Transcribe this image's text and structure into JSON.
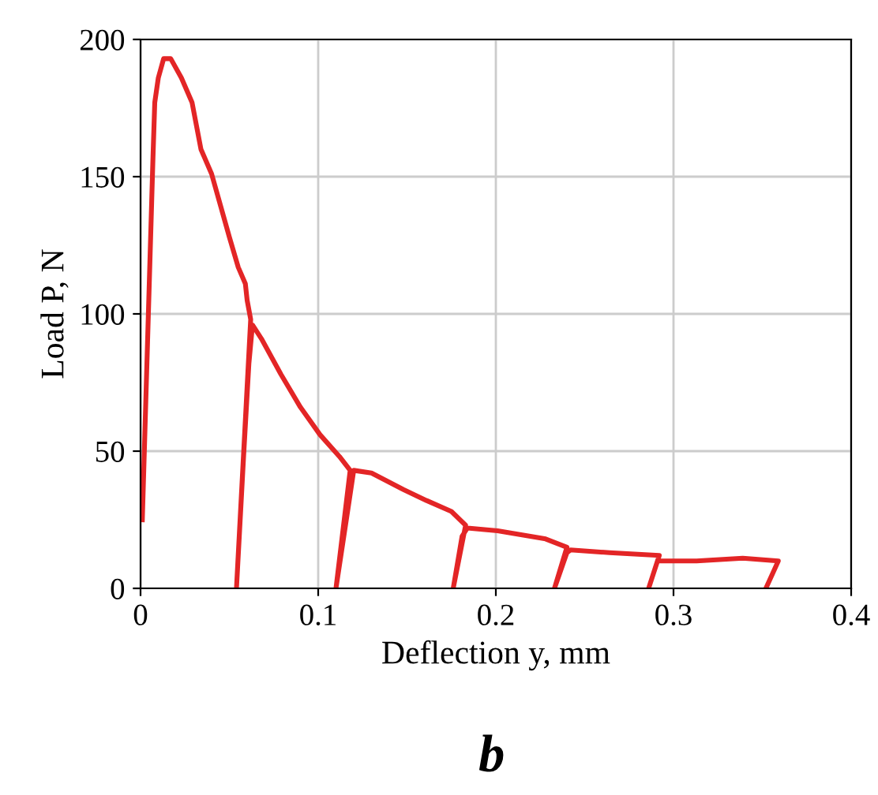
{
  "chart_data": {
    "type": "line",
    "xlabel": "Deflection y, mm",
    "ylabel": "Load P, N",
    "annotations": [
      "b"
    ],
    "xlim": [
      0,
      0.4
    ],
    "ylim": [
      0,
      200
    ],
    "xticks": [
      0,
      0.1,
      0.2,
      0.3,
      0.4
    ],
    "yticks": [
      0,
      50,
      100,
      150,
      200
    ],
    "grid": true,
    "legend": false,
    "marker": "none",
    "line_style": "solid",
    "series": [
      {
        "color": "#e32526",
        "x": [
          0.001,
          0.007,
          0.008,
          0.01,
          0.013,
          0.017,
          0.023,
          0.029,
          0.034,
          0.04,
          0.05,
          0.055,
          0.059,
          0.06,
          0.062,
          0.054,
          0.058,
          0.061,
          0.063,
          0.068,
          0.079,
          0.09,
          0.101,
          0.112,
          0.118,
          0.11,
          0.117,
          0.12,
          0.13,
          0.148,
          0.161,
          0.175,
          0.183,
          0.176,
          0.181,
          0.184,
          0.201,
          0.228,
          0.24,
          0.233,
          0.24,
          0.242,
          0.264,
          0.292,
          0.286,
          0.291,
          0.313,
          0.339,
          0.359,
          0.352
        ],
        "values": [
          25,
          157,
          177,
          186,
          193,
          193,
          186,
          177,
          160,
          151,
          128,
          117,
          111,
          105,
          98,
          0,
          48,
          82,
          96,
          91,
          78,
          66,
          56,
          48,
          43,
          0,
          30,
          43,
          42,
          36,
          32,
          28,
          23,
          0,
          19,
          22,
          21,
          18,
          15,
          0,
          13,
          14,
          13,
          12,
          0,
          10,
          10,
          11,
          10,
          0
        ]
      }
    ]
  }
}
